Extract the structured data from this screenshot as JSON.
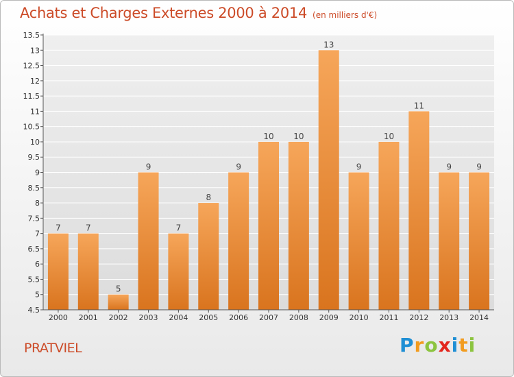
{
  "title": "Achats et Charges Externes 2000 à 2014",
  "subtitle": "(en milliers d'€)",
  "place": "PRATVIEL",
  "brand": {
    "letters": [
      "P",
      "r",
      "o",
      "x",
      "i",
      "t",
      "i"
    ],
    "colors": [
      "#1f8fd4",
      "#f29c1f",
      "#8cc43f",
      "#e3261d",
      "#1f8fd4",
      "#f29c1f",
      "#8cc43f"
    ]
  },
  "chart_data": {
    "type": "bar",
    "categories": [
      "2000",
      "2001",
      "2002",
      "2003",
      "2004",
      "2005",
      "2006",
      "2007",
      "2008",
      "2009",
      "2010",
      "2011",
      "2012",
      "2013",
      "2014"
    ],
    "values": [
      7,
      7,
      5,
      9,
      7,
      8,
      9,
      10,
      10,
      13,
      9,
      10,
      11,
      9,
      9
    ],
    "data_labels": [
      "7",
      "7",
      "5",
      "9",
      "7",
      "8",
      "9",
      "10",
      "10",
      "13",
      "9",
      "10",
      "11",
      "9",
      "9"
    ],
    "ylim": [
      4.5,
      13.5
    ],
    "yticks": [
      "4.5",
      "5",
      "5.5",
      "6",
      "6.5",
      "7",
      "7.5",
      "8",
      "8.5",
      "9",
      "9.5",
      "10",
      "10.5",
      "11",
      "11.5",
      "12",
      "12.5",
      "13",
      "13.5"
    ],
    "grid": true,
    "bar_color_top": "#f6a65a",
    "bar_color_bottom": "#d9741e"
  }
}
